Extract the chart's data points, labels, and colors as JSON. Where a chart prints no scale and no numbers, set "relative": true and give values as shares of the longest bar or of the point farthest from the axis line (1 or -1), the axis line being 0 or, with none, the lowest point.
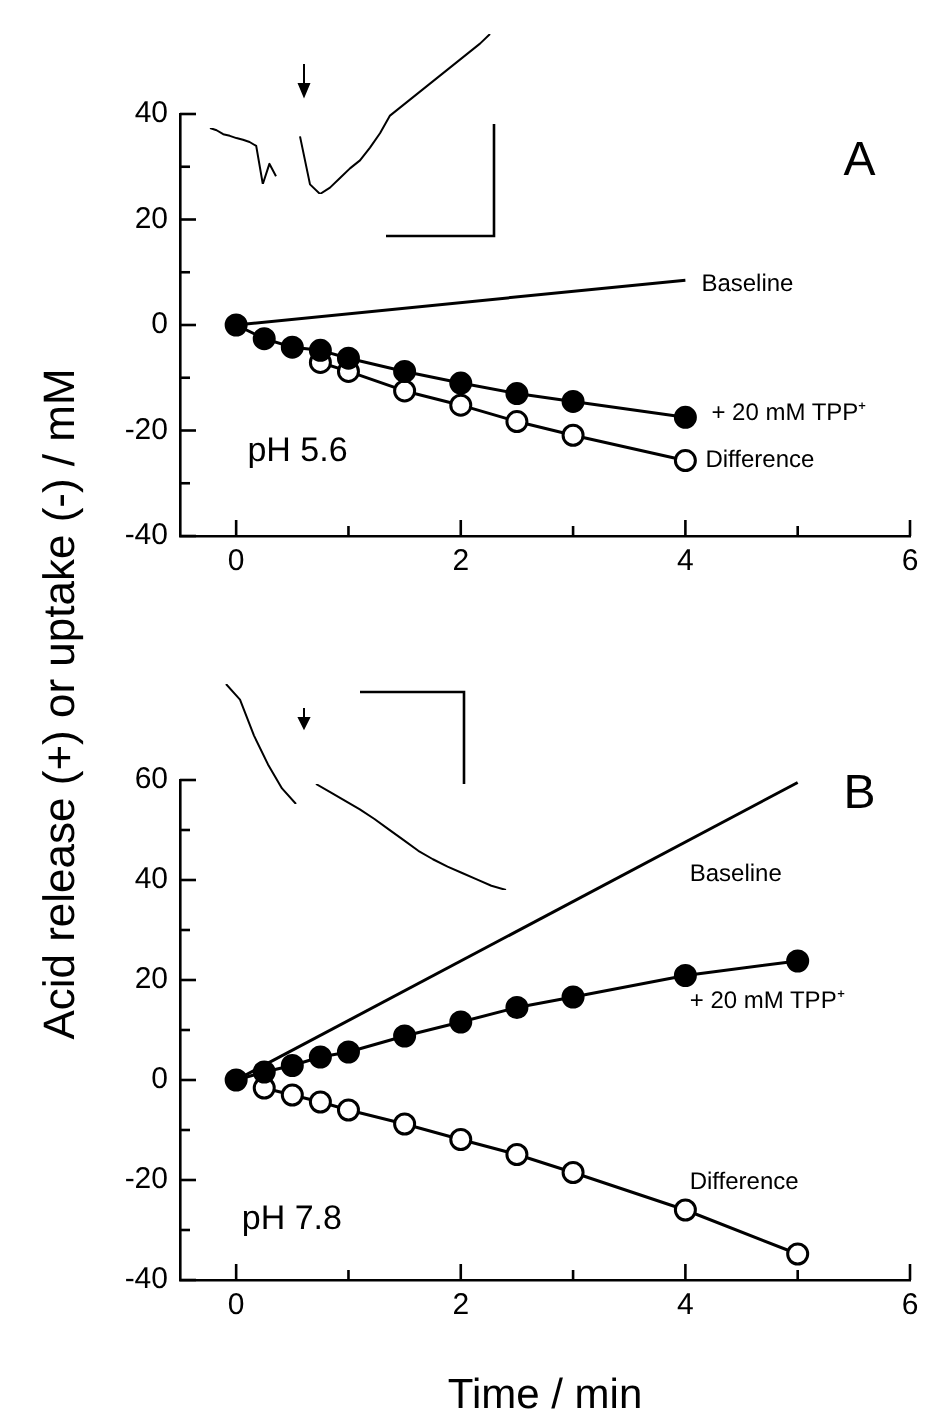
{
  "chart_data": [
    {
      "type": "line",
      "ylabel": "Acid release (+) or uptake (-) / mM",
      "annotations": [
        "A",
        "pH 5.6"
      ],
      "xlim": [
        -0.5,
        6
      ],
      "xticks": [
        0,
        {
          "value": 1,
          "label": null
        },
        2,
        {
          "value": 3,
          "label": null
        },
        4,
        {
          "value": 5,
          "label": null
        },
        6
      ],
      "ylim": [
        -40,
        40
      ],
      "yticks": [
        -40,
        {
          "value": -30,
          "label": null
        },
        -20,
        {
          "value": -10,
          "label": null
        },
        0,
        {
          "value": 10,
          "label": null
        },
        20,
        {
          "value": 30,
          "label": null
        },
        40
      ],
      "grid": false,
      "legend": false,
      "line_style": "solid",
      "series": [
        {
          "name": "Baseline",
          "color": "#000000",
          "x": [
            0,
            4
          ],
          "values": [
            0,
            8.5
          ]
        },
        {
          "name": "+ 20 mM TPP⁺",
          "color": "#000000",
          "marker": "circle",
          "x": [
            0,
            0.25,
            0.5,
            0.75,
            1,
            1.5,
            2,
            2.5,
            3,
            4
          ],
          "values": [
            0,
            -2.6,
            -4.2,
            -4.8,
            -6.3,
            -8.8,
            -11,
            -13,
            -14.5,
            -17.5
          ]
        },
        {
          "name": "Difference",
          "color": "#000000",
          "marker": "circle",
          "x": [
            0.75,
            1,
            1.5,
            2,
            2.5,
            3,
            4
          ],
          "values": [
            -7.1,
            -8.8,
            -12.5,
            -15.2,
            -18.3,
            -20.9,
            -25.7
          ]
        }
      ]
    },
    {
      "type": "line",
      "xlabel": "Time / min",
      "annotations": [
        "B",
        "pH 7.8"
      ],
      "xlim": [
        -0.5,
        6
      ],
      "xticks": [
        0,
        {
          "value": 1,
          "label": null
        },
        2,
        {
          "value": 3,
          "label": null
        },
        4,
        {
          "value": 5,
          "label": null
        },
        6
      ],
      "ylim": [
        -40,
        60
      ],
      "yticks": [
        -40,
        {
          "value": -30,
          "label": null
        },
        -20,
        {
          "value": -10,
          "label": null
        },
        0,
        {
          "value": 10,
          "label": null
        },
        20,
        {
          "value": 30,
          "label": null
        },
        40,
        {
          "value": 50,
          "label": null
        },
        60
      ],
      "grid": false,
      "legend": false,
      "line_style": "solid",
      "series": [
        {
          "name": "Baseline",
          "color": "#000000",
          "x": [
            0,
            5
          ],
          "values": [
            0,
            59.5
          ]
        },
        {
          "name": "+ 20 mM TPP⁺",
          "color": "#000000",
          "marker": "circle",
          "x": [
            0,
            0.25,
            0.5,
            0.75,
            1,
            1.5,
            2,
            2.5,
            3,
            4,
            5
          ],
          "values": [
            0,
            1.6,
            2.9,
            4.6,
            5.6,
            8.8,
            11.6,
            14.5,
            16.6,
            20.9,
            23.8
          ]
        },
        {
          "name": "Difference",
          "color": "#000000",
          "marker": "circle",
          "x": [
            0.25,
            0.5,
            0.75,
            1,
            1.5,
            2,
            2.5,
            3,
            4,
            5
          ],
          "values": [
            -1.6,
            -3,
            -4.4,
            -6,
            -8.8,
            -11.9,
            -14.9,
            -18.5,
            -26,
            -34.8
          ]
        }
      ]
    },
    {
      "type": "line",
      "relative": true,
      "categories": [
        null,
        null,
        null,
        null,
        null,
        null,
        null,
        null,
        null,
        null,
        null
      ],
      "series": [
        {
          "color": "#000000",
          "values": [
            1,
            0.96,
            0.89,
            0.86,
            0.82,
            0.79,
            0.75,
            0.68,
            0,
            0.36,
            0.14
          ]
        }
      ]
    },
    {
      "type": "line",
      "relative": true,
      "categories": [
        null,
        null,
        null,
        null,
        null,
        null,
        null,
        null,
        null,
        null,
        null,
        null,
        null,
        null,
        null,
        null,
        null,
        null,
        null,
        null
      ],
      "series": [
        {
          "color": "#000000",
          "values": [
            0.36,
            0.06,
            0,
            0.04,
            0.1,
            0.16,
            0.21,
            0.29,
            0.38,
            0.49,
            0.54,
            0.59,
            0.64,
            0.69,
            0.74,
            0.79,
            0.84,
            0.89,
            0.94,
            1
          ]
        }
      ]
    },
    {
      "type": "line",
      "relative": true,
      "categories": [
        null,
        null,
        null,
        null,
        null,
        null
      ],
      "series": [
        {
          "color": "#000000",
          "values": [
            1,
            0.87,
            0.57,
            0.33,
            0.13,
            0
          ]
        }
      ]
    },
    {
      "type": "line",
      "relative": true,
      "categories": [
        null,
        null,
        null,
        null,
        null,
        null,
        null,
        null,
        null,
        null,
        null,
        null,
        null,
        null
      ],
      "series": [
        {
          "color": "#000000",
          "values": [
            1,
            0.92,
            0.84,
            0.76,
            0.67,
            0.57,
            0.47,
            0.37,
            0.29,
            0.22,
            0.16,
            0.1,
            0.04,
            0
          ]
        }
      ]
    }
  ]
}
